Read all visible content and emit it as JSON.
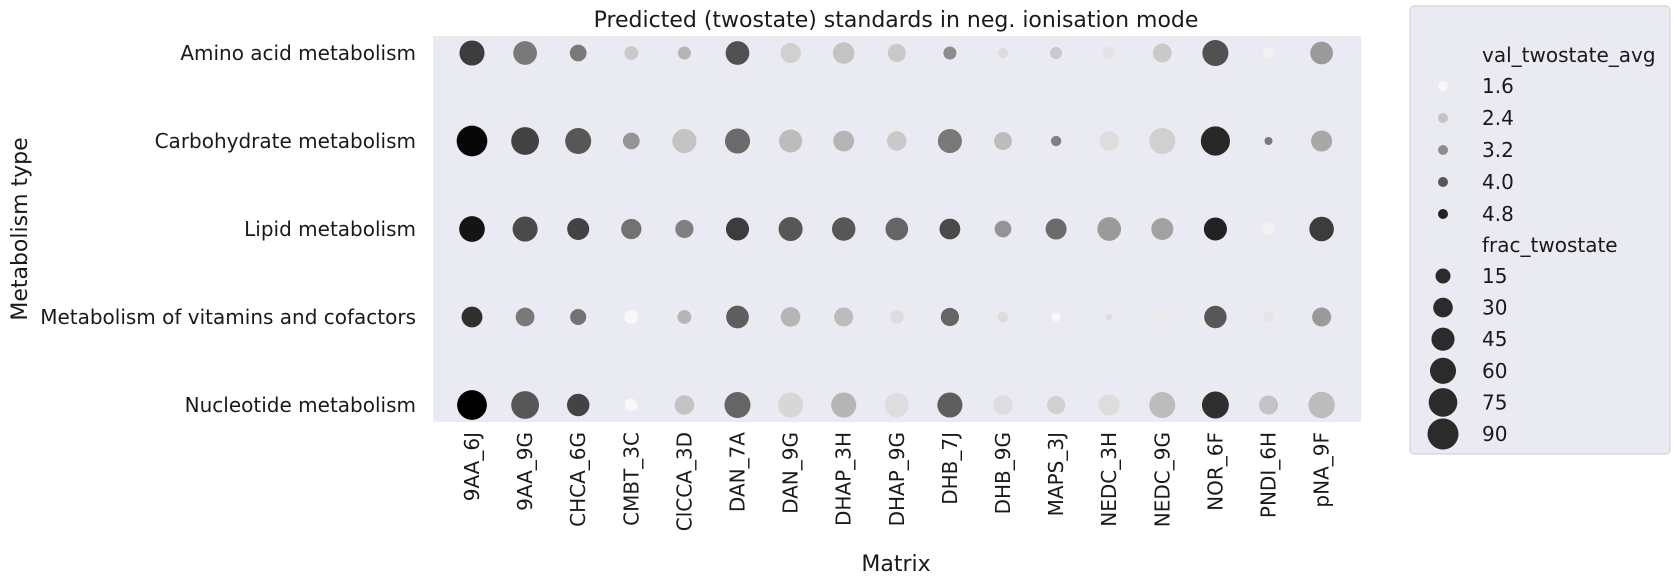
{
  "chart_data": {
    "type": "scatter",
    "title": "Predicted (twostate) standards in neg. ionisation mode",
    "xlabel": "Matrix",
    "ylabel": "Metabolism type",
    "grid": false,
    "legend_position": "outside-right",
    "x_categories": [
      "9AA_6J",
      "9AA_9G",
      "CHCA_6G",
      "CMBT_3C",
      "ClCCA_3D",
      "DAN_7A",
      "DAN_9G",
      "DHAP_3H",
      "DHAP_9G",
      "DHB_7J",
      "DHB_9G",
      "MAPS_3J",
      "NEDC_3H",
      "NEDC_9G",
      "NOR_6F",
      "PNDI_6H",
      "pNA_9F"
    ],
    "y_categories": [
      "Amino acid metabolism",
      "Carbohydrate metabolism",
      "Lipid metabolism",
      "Metabolism of vitamins and cofactors",
      "Nucleotide metabolism"
    ],
    "series": [
      {
        "row": "Amino acid metabolism",
        "val": [
          4.4,
          3.5,
          3.5,
          2.3,
          2.6,
          4.1,
          2.2,
          2.4,
          2.3,
          3.2,
          2.0,
          2.3,
          1.9,
          2.3,
          4.1,
          1.7,
          3.0
        ],
        "frac": [
          55,
          48,
          20,
          12,
          10,
          48,
          33,
          38,
          25,
          10,
          5,
          8,
          9,
          27,
          60,
          6,
          43
        ]
      },
      {
        "row": "Carbohydrate metabolism",
        "val": [
          5.2,
          4.3,
          4.0,
          3.1,
          2.4,
          3.7,
          2.5,
          2.6,
          2.3,
          3.5,
          2.5,
          3.4,
          2.0,
          2.2,
          4.7,
          3.5,
          2.8
        ],
        "frac": [
          88,
          70,
          60,
          20,
          50,
          55,
          45,
          35,
          30,
          50,
          24,
          5,
          30,
          60,
          78,
          2,
          36
        ]
      },
      {
        "row": "Lipid metabolism",
        "val": [
          5.0,
          4.2,
          4.3,
          3.6,
          3.4,
          4.4,
          4.0,
          4.0,
          3.8,
          4.2,
          3.1,
          3.7,
          3.0,
          2.9,
          4.8,
          1.7,
          4.4
        ],
        "frac": [
          58,
          55,
          40,
          33,
          25,
          45,
          50,
          47,
          43,
          35,
          20,
          36,
          48,
          40,
          45,
          9,
          52
        ]
      },
      {
        "row": "Metabolism of vitamins and cofactors",
        "val": [
          4.6,
          3.5,
          3.6,
          1.6,
          2.6,
          3.9,
          2.6,
          2.5,
          2.0,
          3.8,
          2.0,
          1.6,
          2.0,
          1.8,
          4.0,
          1.9,
          3.0
        ],
        "frac": [
          35,
          27,
          18,
          12,
          12,
          43,
          30,
          28,
          12,
          25,
          6,
          3,
          1,
          15,
          42,
          5,
          28
        ]
      },
      {
        "row": "Nucleotide metabolism",
        "val": [
          5.3,
          4.0,
          4.3,
          1.6,
          2.4,
          3.8,
          2.1,
          2.6,
          2.0,
          3.9,
          2.0,
          2.2,
          2.0,
          2.5,
          4.6,
          2.4,
          2.5
        ],
        "frac": [
          82,
          70,
          42,
          9,
          30,
          60,
          55,
          55,
          50,
          55,
          30,
          25,
          36,
          60,
          65,
          28,
          62
        ]
      }
    ],
    "legend": {
      "color_title": "val_twostate_avg",
      "color_entries": [
        1.6,
        2.4,
        3.2,
        4.0,
        4.8
      ],
      "size_title": "frac_twostate",
      "size_entries": [
        15,
        30,
        45,
        60,
        75,
        90
      ]
    }
  }
}
